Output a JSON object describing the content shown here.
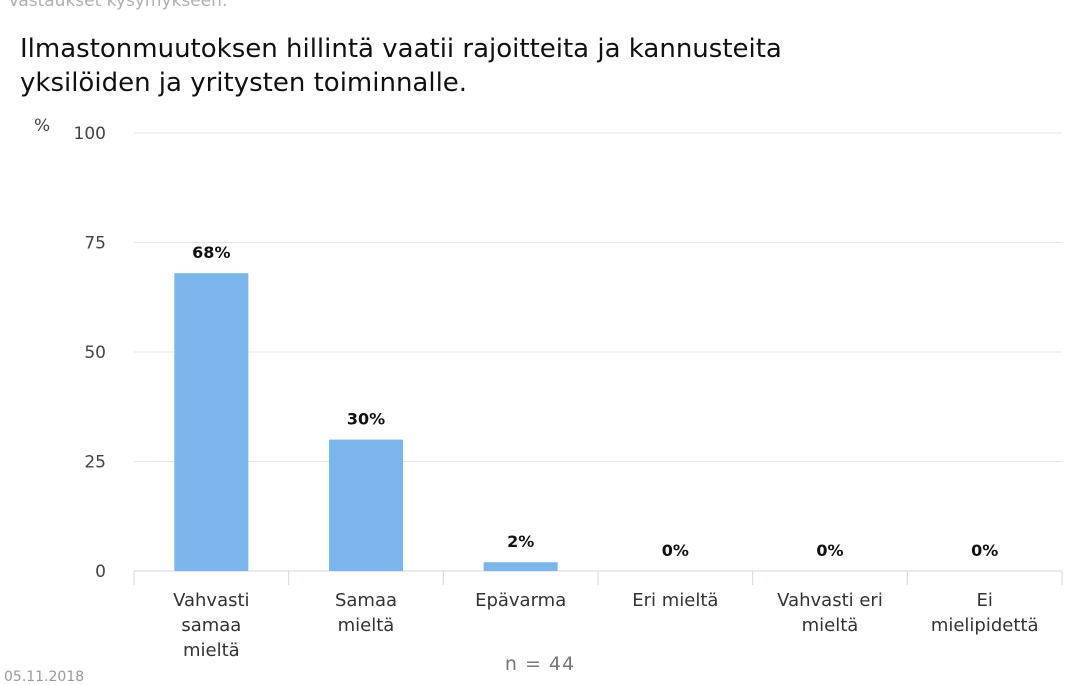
{
  "header": {
    "subtitle": "Vastaukset kysymykseen:",
    "title": "Ilmastonmuutoksen hillintä vaatii rajoitteita ja kannusteita yksilöiden ja yritysten toiminnalle."
  },
  "footer": {
    "n_label": "n = 44",
    "date_partial": "05.11.2018"
  },
  "colors": {
    "bar": "#7cb5ec",
    "grid": "#e6e6e6",
    "axis": "#ccd6eb"
  },
  "chart_data": {
    "type": "bar",
    "title": "Ilmastonmuutoksen hillintä vaatii rajoitteita ja kannusteita yksilöiden ja yritysten toiminnalle.",
    "ylabel": "%",
    "xlabel": "",
    "ylim": [
      0,
      100
    ],
    "yticks": [
      0,
      25,
      50,
      75,
      100
    ],
    "grid": true,
    "categories": [
      [
        "Vahvasti",
        "samaa",
        "mieltä"
      ],
      [
        "Samaa",
        "mieltä"
      ],
      [
        "Epävarma"
      ],
      [
        "Eri mieltä"
      ],
      [
        "Vahvasti eri",
        "mieltä"
      ],
      [
        "Ei",
        "mielipidettä"
      ]
    ],
    "values": [
      68,
      30,
      2,
      0,
      0,
      0
    ],
    "data_labels": [
      "68%",
      "30%",
      "2%",
      "0%",
      "0%",
      "0%"
    ]
  }
}
